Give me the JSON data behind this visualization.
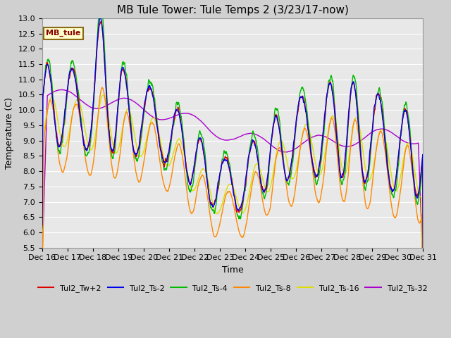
{
  "title": "MB Tule Tower: Tule Temps 2 (3/23/17-now)",
  "xlabel": "Time",
  "ylabel": "Temperature (C)",
  "ylim": [
    5.5,
    13.0
  ],
  "yticks": [
    5.5,
    6.0,
    6.5,
    7.0,
    7.5,
    8.0,
    8.5,
    9.0,
    9.5,
    10.0,
    10.5,
    11.0,
    11.5,
    12.0,
    12.5,
    13.0
  ],
  "fig_bg_color": "#d0d0d0",
  "plot_bg_color": "#e8e8e8",
  "grid_color": "#ffffff",
  "line_colors": {
    "Tul2_Tw+2": "#dd0000",
    "Tul2_Ts-2": "#0000ee",
    "Tul2_Ts-4": "#00bb00",
    "Tul2_Ts-8": "#ff8800",
    "Tul2_Ts-16": "#dddd00",
    "Tul2_Ts-32": "#aa00cc"
  },
  "legend_label": "MB_tule",
  "xtick_labels": [
    "Dec 16",
    "Dec 17",
    "Dec 18",
    "Dec 19",
    "Dec 20",
    "Dec 21",
    "Dec 22",
    "Dec 23",
    "Dec 24",
    "Dec 25",
    "Dec 26",
    "Dec 27",
    "Dec 28",
    "Dec 29",
    "Dec 30",
    "Dec 31"
  ],
  "title_fontsize": 11,
  "axis_label_fontsize": 9,
  "tick_fontsize": 8,
  "legend_fontsize": 8,
  "linewidth": 1.0,
  "figsize": [
    6.4,
    4.8
  ],
  "dpi": 100
}
